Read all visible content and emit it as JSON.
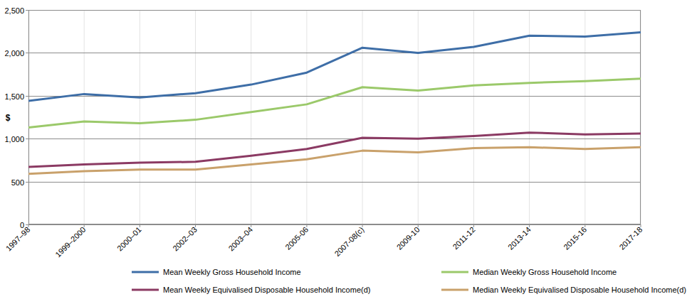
{
  "chart_data": {
    "type": "line",
    "y_label": "$",
    "categories": [
      "1997–98",
      "1999–2000",
      "2000–01",
      "2002–03",
      "2003–04",
      "2005-06",
      "2007-08(c)",
      "2009-10",
      "2011-12",
      "2013-14",
      "2015-16",
      "2017-18"
    ],
    "series": [
      {
        "name": "Mean Weekly Gross Household Income",
        "color": "#3e6ea7",
        "values": [
          1440,
          1520,
          1480,
          1530,
          1630,
          1770,
          2060,
          2000,
          2070,
          2200,
          2190,
          2240
        ]
      },
      {
        "name": "Median Weekly Gross Household Income",
        "color": "#9bc96a",
        "values": [
          1130,
          1200,
          1180,
          1220,
          1310,
          1400,
          1600,
          1560,
          1620,
          1650,
          1670,
          1700
        ]
      },
      {
        "name": "Mean Weekly Equivalised Disposable Household Income(d)",
        "color": "#8b3a63",
        "values": [
          670,
          700,
          720,
          730,
          800,
          880,
          1010,
          1000,
          1030,
          1070,
          1050,
          1060
        ]
      },
      {
        "name": "Median Weekly Equivalised Disposable Household Income(d)",
        "color": "#c9a16b",
        "values": [
          590,
          620,
          640,
          640,
          700,
          760,
          860,
          840,
          890,
          900,
          880,
          900
        ]
      }
    ],
    "ylim": [
      0,
      2500
    ],
    "yticks": [
      0,
      500,
      {
        "value": 1000,
        "label": "1,000"
      },
      {
        "value": 1500,
        "label": "1,500"
      },
      {
        "value": 2000,
        "label": "2,000"
      },
      {
        "value": 2500,
        "label": "2,500"
      }
    ],
    "grid": true,
    "legend": "bottom"
  }
}
